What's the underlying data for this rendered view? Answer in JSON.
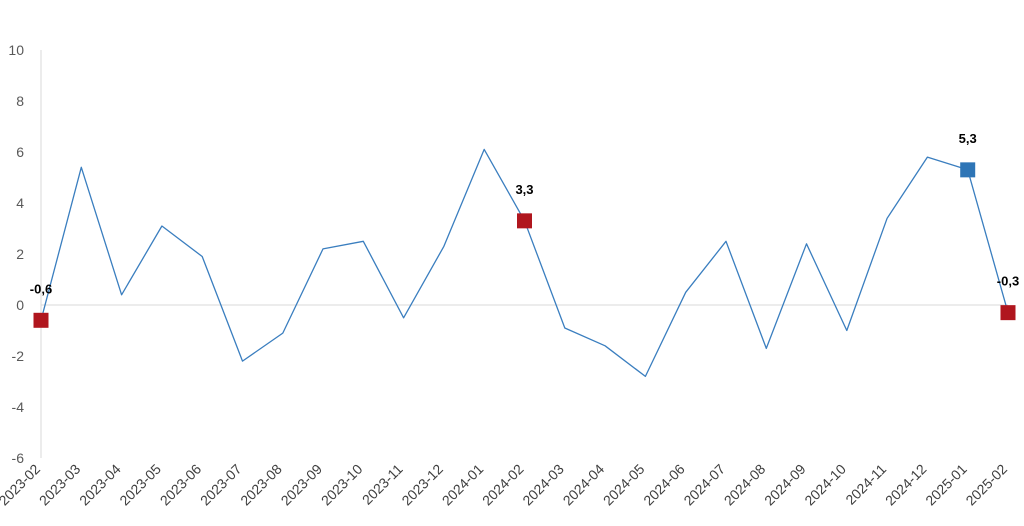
{
  "chart_data": {
    "type": "line",
    "title": "",
    "xlabel": "",
    "ylabel": "",
    "ylim": [
      -6,
      10
    ],
    "yticks": [
      10,
      8,
      6,
      4,
      2,
      0,
      -2,
      -4,
      -6
    ],
    "grid": false,
    "categories": [
      "2023-02",
      "2023-03",
      "2023-04",
      "2023-05",
      "2023-06",
      "2023-07",
      "2023-08",
      "2023-09",
      "2023-10",
      "2023-11",
      "2023-12",
      "2024-01",
      "2024-02",
      "2024-03",
      "2024-04",
      "2024-05",
      "2024-06",
      "2024-07",
      "2024-08",
      "2024-09",
      "2024-10",
      "2024-11",
      "2024-12",
      "2025-01",
      "2025-02"
    ],
    "series": [
      {
        "values": [
          -0.6,
          5.4,
          0.4,
          3.1,
          1.9,
          -2.2,
          -1.1,
          2.2,
          2.5,
          -0.5,
          2.3,
          6.1,
          3.3,
          -0.9,
          -1.6,
          -2.8,
          0.5,
          2.5,
          -1.7,
          2.4,
          -1.0,
          3.4,
          5.8,
          5.3,
          -0.3
        ],
        "color": "#3a7ebf"
      }
    ],
    "markers": [
      {
        "category": "2023-02",
        "value": -0.6,
        "label": "-0,6",
        "color": "#b0161e"
      },
      {
        "category": "2024-02",
        "value": 3.3,
        "label": "3,3",
        "color": "#b0161e"
      },
      {
        "category": "2025-01",
        "value": 5.3,
        "label": "5,3",
        "color": "#2e75b6"
      },
      {
        "category": "2025-02",
        "value": -0.3,
        "label": "-0,3",
        "color": "#b0161e"
      }
    ],
    "colors": {
      "line": "#3a7ebf",
      "axis": "#d9d9d9"
    }
  }
}
